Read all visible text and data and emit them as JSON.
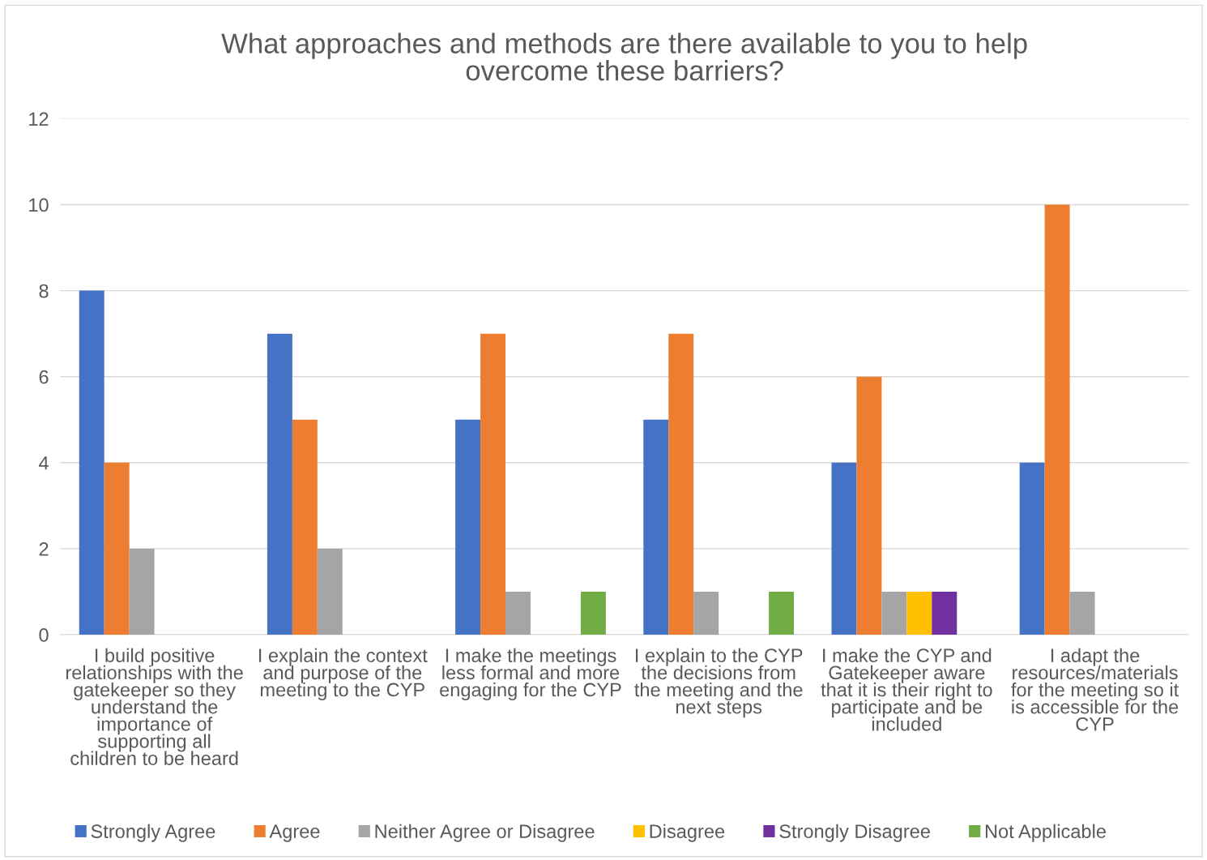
{
  "chart_data": {
    "type": "bar",
    "title": "What approaches and methods are there available to you to help\novercome these barriers?",
    "categories": [
      "I build positive\nrelationships with the\ngatekeeper so they\nunderstand the\nimportance of\nsupporting all\nchildren to be heard",
      "I explain the context\nand purpose of the\nmeeting to the CYP",
      "I make the meetings\nless formal and more\nengaging for the CYP",
      "I explain to the CYP\nthe decisions from\nthe meeting and the\nnext steps",
      "I make the CYP and\nGatekeeper aware\nthat it is their right to\nparticipate and be\nincluded",
      "I adapt the\nresources/materials\nfor the meeting so it\nis accessible for the\nCYP"
    ],
    "series": [
      {
        "name": "Strongly Agree",
        "color": "#4472c4",
        "values": [
          8,
          7,
          5,
          5,
          4,
          4
        ]
      },
      {
        "name": "Agree",
        "color": "#ed7d31",
        "values": [
          4,
          5,
          7,
          7,
          6,
          10
        ]
      },
      {
        "name": "Neither Agree or Disagree",
        "color": "#a5a5a5",
        "values": [
          2,
          2,
          1,
          1,
          1,
          1
        ]
      },
      {
        "name": "Disagree",
        "color": "#ffc000",
        "values": [
          0,
          0,
          0,
          0,
          1,
          0
        ]
      },
      {
        "name": "Strongly Disagree",
        "color": "#7030a0",
        "values": [
          0,
          0,
          0,
          0,
          1,
          0
        ]
      },
      {
        "name": "Not Applicable",
        "color": "#70ad47",
        "values": [
          0,
          0,
          1,
          1,
          0,
          0
        ]
      }
    ],
    "ylim": [
      0,
      12
    ],
    "yticks": [
      0,
      2,
      4,
      6,
      8,
      10,
      12
    ],
    "grid": "y",
    "legend": "bottom"
  }
}
